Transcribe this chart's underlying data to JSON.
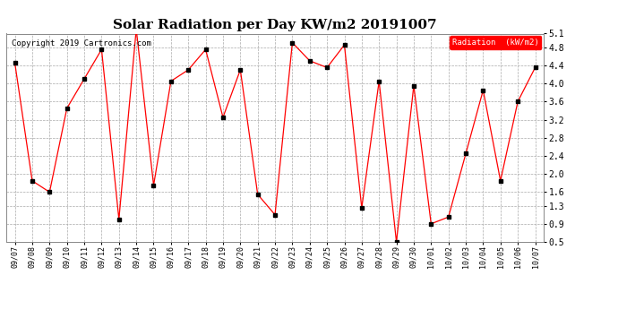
{
  "title": "Solar Radiation per Day KW/m2 20191007",
  "copyright": "Copyright 2019 Cartronics.com",
  "legend_label": "Radiation  (kW/m2)",
  "dates": [
    "09/07",
    "09/08",
    "09/09",
    "09/10",
    "09/11",
    "09/12",
    "09/13",
    "09/14",
    "09/15",
    "09/16",
    "09/17",
    "09/18",
    "09/19",
    "09/20",
    "09/21",
    "09/22",
    "09/23",
    "09/24",
    "09/25",
    "09/26",
    "09/27",
    "09/28",
    "09/29",
    "09/30",
    "10/01",
    "10/02",
    "10/03",
    "10/04",
    "10/05",
    "10/06",
    "10/07"
  ],
  "values": [
    4.45,
    1.85,
    1.6,
    3.45,
    4.1,
    4.75,
    1.0,
    5.2,
    1.75,
    4.05,
    4.3,
    4.75,
    3.25,
    4.3,
    1.55,
    1.1,
    4.9,
    4.5,
    4.35,
    4.85,
    1.25,
    4.05,
    0.5,
    3.95,
    0.9,
    1.05,
    2.45,
    3.85,
    1.85,
    3.6,
    4.35
  ],
  "line_color": "#ff0000",
  "marker_color": "#000000",
  "bg_color": "#ffffff",
  "grid_color": "#aaaaaa",
  "ylim": [
    0.5,
    5.1
  ],
  "yticks": [
    0.5,
    0.9,
    1.3,
    1.6,
    2.0,
    2.4,
    2.8,
    3.2,
    3.6,
    4.0,
    4.4,
    4.8,
    5.1
  ],
  "legend_bg": "#ff0000",
  "legend_text_color": "#ffffff",
  "title_fontsize": 11,
  "copyright_fontsize": 6.5,
  "tick_fontsize": 6,
  "ytick_fontsize": 7
}
